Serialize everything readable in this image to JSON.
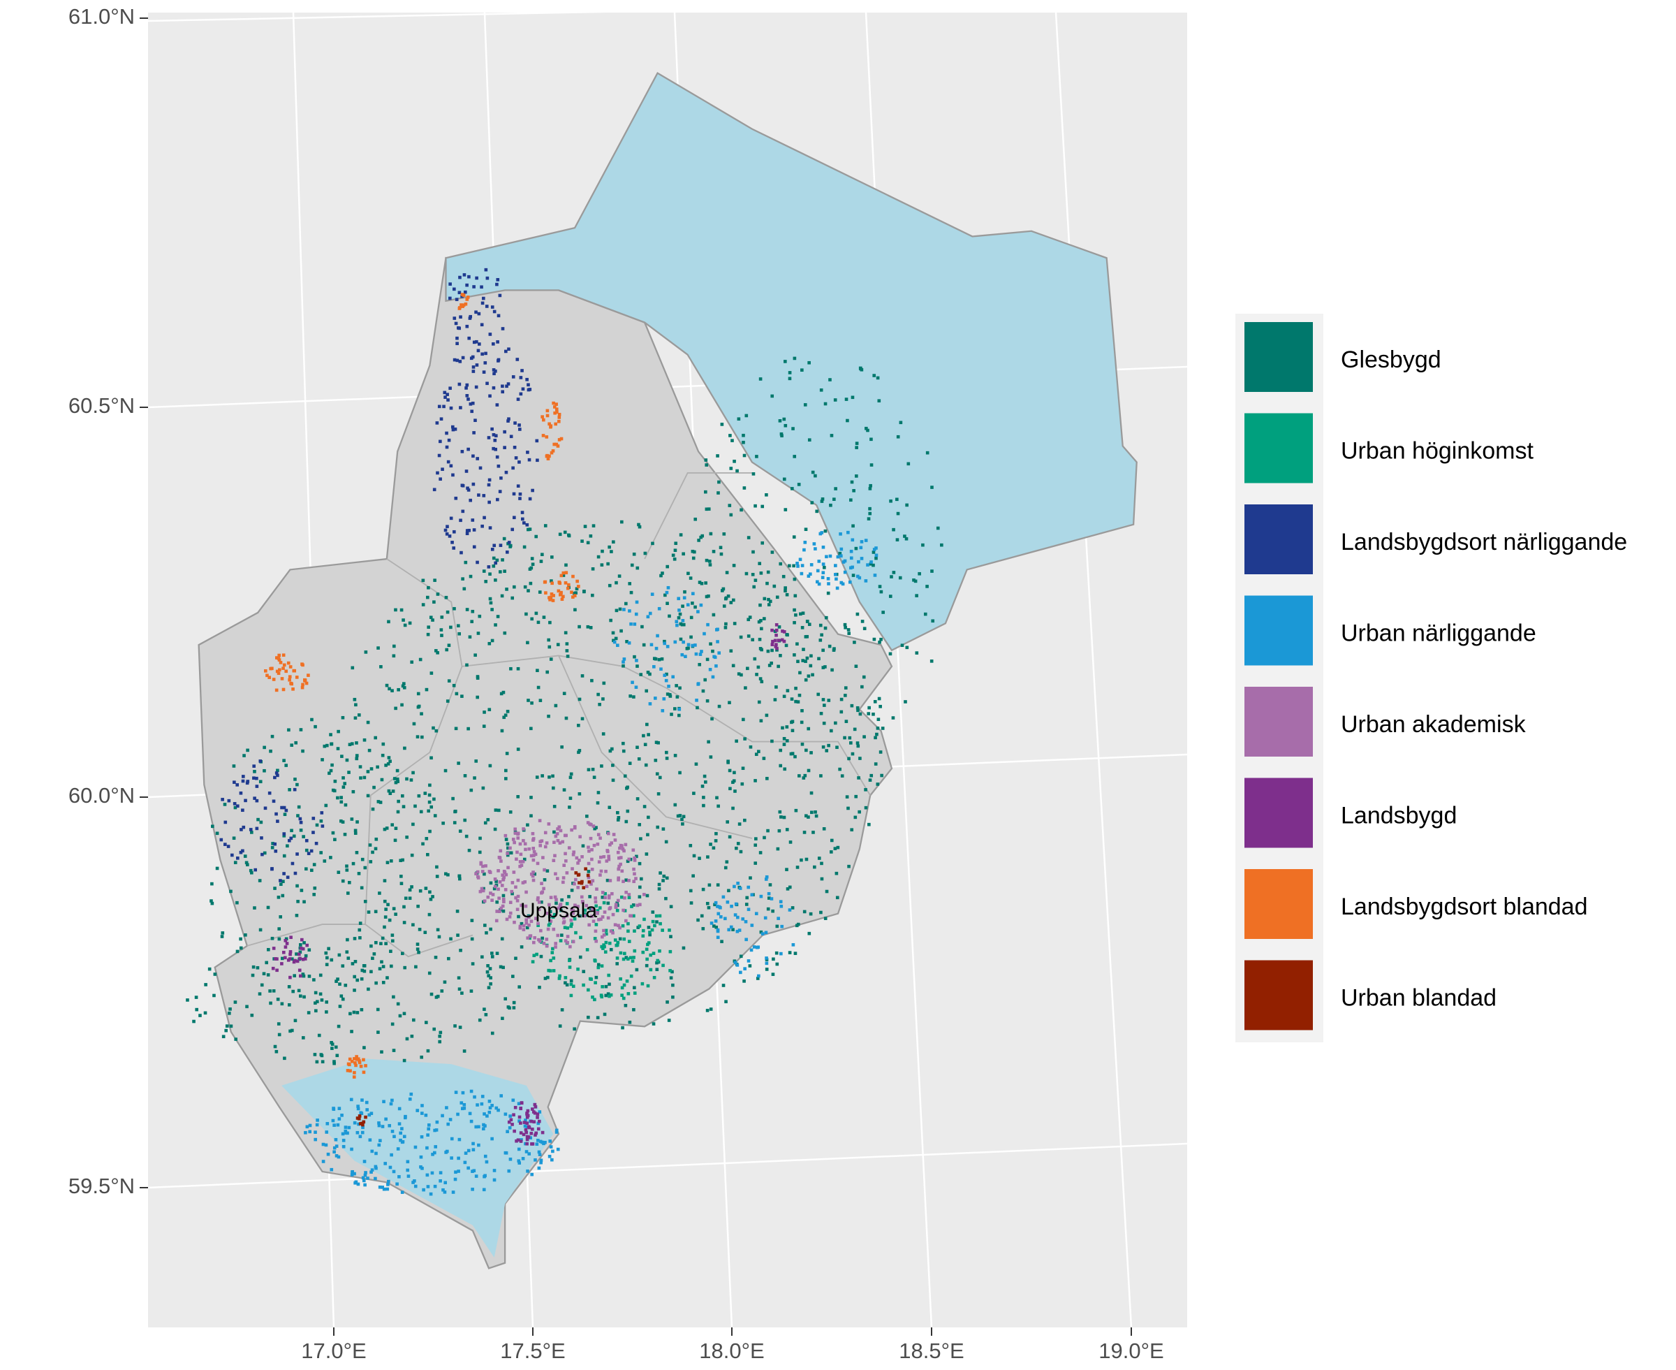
{
  "map": {
    "y_axis_labels": [
      "61.0°N",
      "60.5°N",
      "60.0°N",
      "59.5°N"
    ],
    "x_axis_labels": [
      "17.0°E",
      "17.5°E",
      "18.0°E",
      "18.5°E",
      "19.0°E"
    ],
    "place_label": "Uppsala",
    "legend": [
      {
        "name": "Glesbygd",
        "color": "#00786c"
      },
      {
        "name": "Urban höginkomst",
        "color": "#00a07e"
      },
      {
        "name": "Landsbygdsort närliggande",
        "color": "#1f3a8f"
      },
      {
        "name": "Urban närliggande",
        "color": "#1b98d6"
      },
      {
        "name": "Urban akademisk",
        "color": "#a76daa"
      },
      {
        "name": "Landsbygd",
        "color": "#7e2f8c"
      },
      {
        "name": "Landsbygdsort blandad",
        "color": "#ef7024"
      },
      {
        "name": "Urban blandad",
        "color": "#922000"
      }
    ]
  }
}
